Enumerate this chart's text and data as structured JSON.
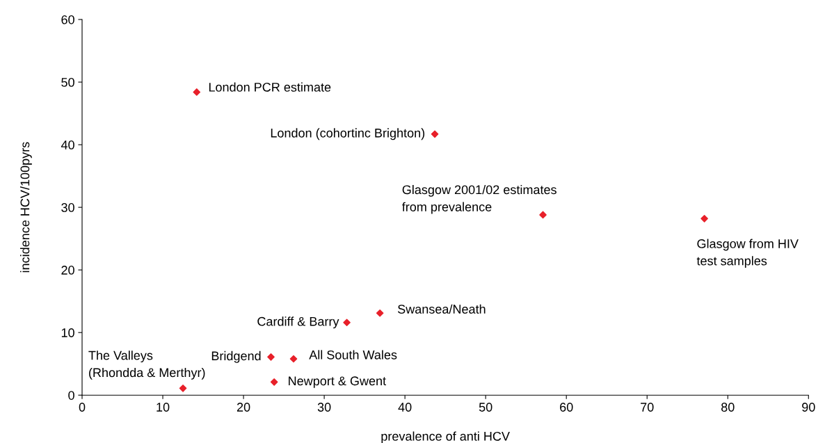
{
  "chart_data": {
    "type": "scatter",
    "xlabel": "prevalence of anti HCV",
    "ylabel": "incidence HCV/100pyrs",
    "x": [
      14.2,
      43.7,
      57.1,
      77.1,
      36.9,
      32.8,
      23.4,
      26.2,
      23.8,
      12.5
    ],
    "series": [
      {
        "color": "#e8202a",
        "values": [
          48.4,
          41.7,
          28.8,
          28.2,
          13.1,
          11.6,
          6.1,
          5.8,
          2.1,
          1.1
        ]
      }
    ],
    "marker": "diamond",
    "grid": false,
    "legend": false,
    "xlim": [
      0,
      90
    ],
    "xticks": [
      0,
      10,
      20,
      30,
      40,
      50,
      60,
      70,
      80,
      90
    ],
    "ylim": [
      0,
      60
    ],
    "yticks": [
      0,
      10,
      20,
      30,
      40,
      50,
      60
    ],
    "annotations": [
      {
        "text": "London PCR estimate",
        "x": 14.2,
        "y": 48.4
      },
      {
        "text": "London (cohortinc Brighton)",
        "x": 43.7,
        "y": 41.7
      },
      {
        "text": "Glasgow 2001/02 estimates\nfrom prevalence",
        "x": 57.1,
        "y": 28.8
      },
      {
        "text": "Glasgow from HIV\ntest samples",
        "x": 77.1,
        "y": 28.2
      },
      {
        "text": "Swansea/Neath",
        "x": 36.9,
        "y": 13.1
      },
      {
        "text": "Cardiff & Barry",
        "x": 32.8,
        "y": 11.6
      },
      {
        "text": "Bridgend",
        "x": 23.4,
        "y": 6.1
      },
      {
        "text": "All South Wales",
        "x": 26.2,
        "y": 5.8
      },
      {
        "text": "Newport & Gwent",
        "x": 23.8,
        "y": 2.1
      },
      {
        "text": "The Valleys\n(Rhondda & Merthyr)",
        "x": 12.5,
        "y": 1.1
      }
    ]
  }
}
